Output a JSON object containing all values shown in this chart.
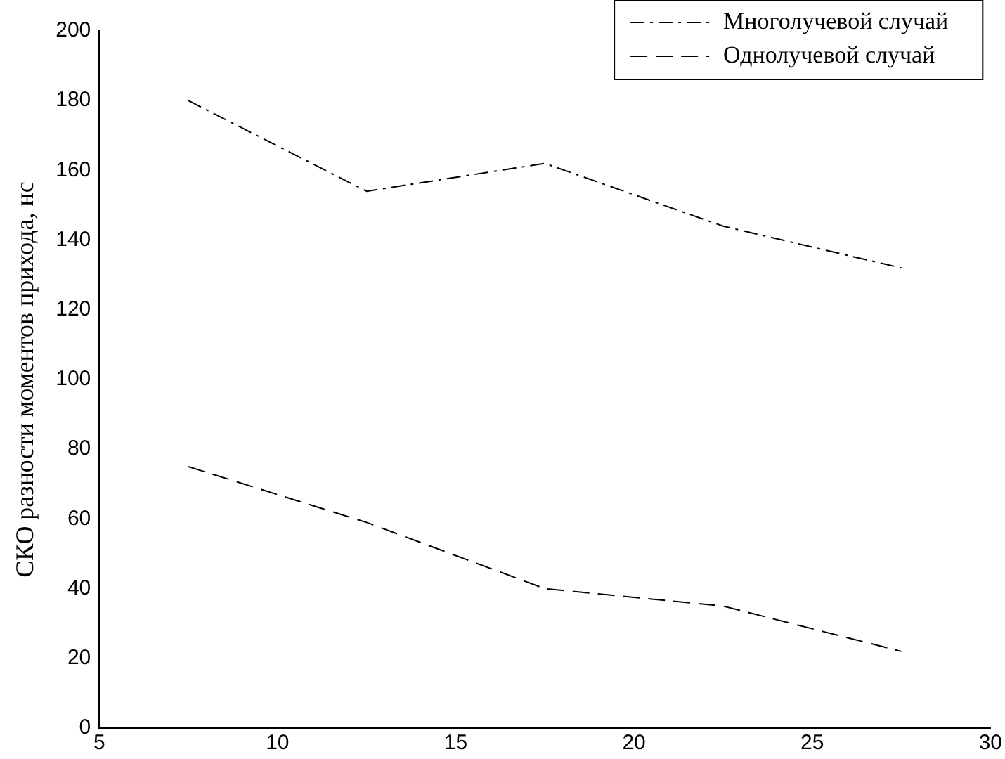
{
  "chart_data": {
    "type": "line",
    "ylabel": "СКО разности моментов прихода, нс",
    "xlim": [
      5,
      30
    ],
    "xticks": [
      5,
      10,
      15,
      20,
      25,
      30
    ],
    "ylim": [
      0,
      200
    ],
    "yticks": [
      0,
      20,
      40,
      60,
      80,
      100,
      120,
      140,
      160,
      180,
      200
    ],
    "x": [
      7.5,
      12.5,
      17.5,
      22.5,
      27.5
    ],
    "grid": false,
    "legend": "top right",
    "marker": "none",
    "series": [
      {
        "name": "Многолучевой случай",
        "color": "#000000",
        "line_style": "dashdot",
        "values": [
          180,
          154,
          162,
          144,
          132
        ]
      },
      {
        "name": "Однолучевой случай",
        "color": "#000000",
        "line_style": "dashed",
        "values": [
          75,
          59,
          40,
          35,
          22
        ]
      }
    ]
  }
}
